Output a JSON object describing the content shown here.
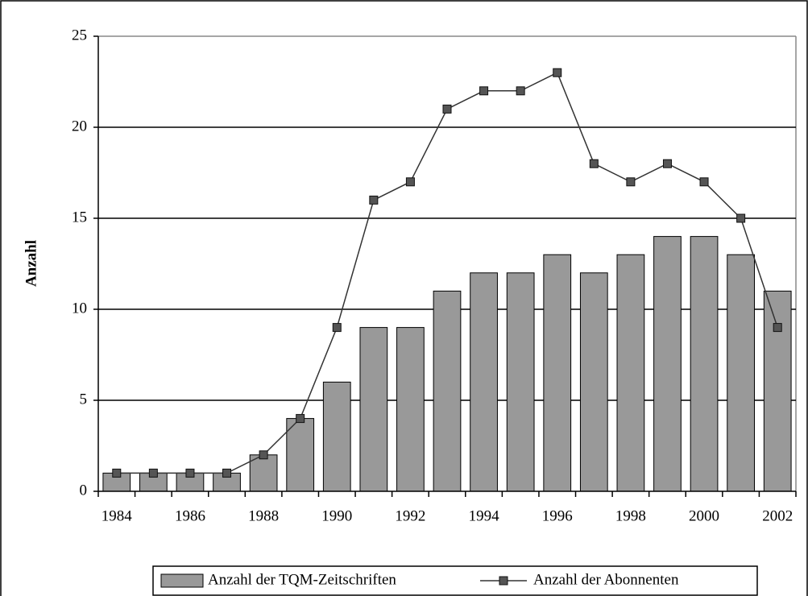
{
  "chart_data": {
    "type": "bar_line",
    "categories": [
      "1984",
      null,
      "1986",
      null,
      "1988",
      null,
      "1990",
      null,
      "1992",
      null,
      "1994",
      null,
      "1996",
      null,
      "1998",
      null,
      "2000",
      null,
      "2002"
    ],
    "y_label": "Anzahl",
    "series": [
      {
        "name": "Anzahl der TQM-Zeitschriften",
        "type": "bar",
        "color": "#999999",
        "values": [
          1,
          1,
          1,
          1,
          2,
          4,
          6,
          9,
          9,
          11,
          12,
          12,
          13,
          12,
          13,
          14,
          14,
          13,
          11
        ]
      },
      {
        "name": "Anzahl der Abonnenten",
        "type": "line",
        "color": "#333333",
        "values": [
          1,
          1,
          1,
          1,
          2,
          4,
          9,
          16,
          17,
          21,
          22,
          22,
          23,
          18,
          17,
          18,
          17,
          15,
          9
        ]
      }
    ],
    "ylim": [
      0,
      25
    ],
    "yticks": [
      0,
      5,
      10,
      15,
      20,
      25
    ],
    "grid": true,
    "legend": "bottom"
  }
}
